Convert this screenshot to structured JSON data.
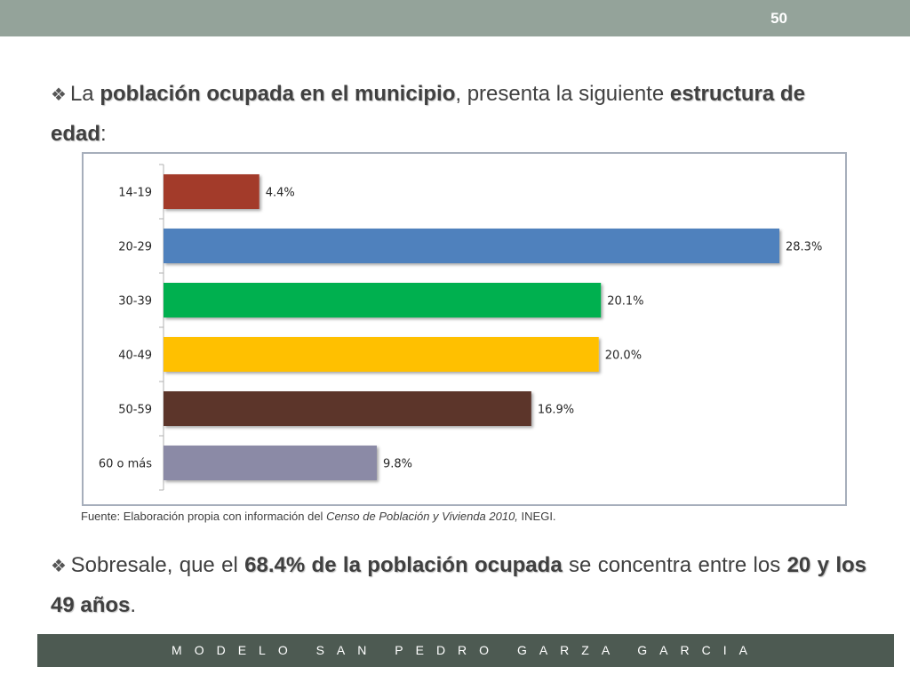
{
  "page_number": "50",
  "intro": {
    "pre": "La ",
    "bold1": "población ocupada en el municipio",
    "mid": ", presenta la siguiente ",
    "bold2": "estructura de edad",
    "post": ":"
  },
  "source": {
    "prefix": "Fuente: Elaboración propia con información del ",
    "italic": "Censo de Población y Vivienda  2010,",
    "suffix": " INEGI."
  },
  "conclusion": {
    "pre": "Sobresale, que el ",
    "bold1": "68.4% de la población ocupada",
    "mid": " se concentra entre los ",
    "bold2": "20 y los 49 años",
    "post": "."
  },
  "footer_text": "MODELO SAN PEDRO GARZA GARCIA",
  "chart_data": {
    "type": "bar",
    "orientation": "horizontal",
    "categories": [
      "14-19",
      "20-29",
      "30-39",
      "40-49",
      "50-59",
      "60 o más"
    ],
    "values": [
      4.4,
      28.3,
      20.1,
      20.0,
      16.9,
      9.8
    ],
    "data_labels": [
      "4.4%",
      "28.3%",
      "20.1%",
      "20.0%",
      "16.9%",
      "9.8%"
    ],
    "colors": [
      "#a33a2a",
      "#4f81bd",
      "#00b050",
      "#ffc000",
      "#5b352c",
      "#8b8aa6"
    ],
    "xlim": [
      0,
      28.3
    ],
    "grid": false,
    "legend": "none"
  }
}
